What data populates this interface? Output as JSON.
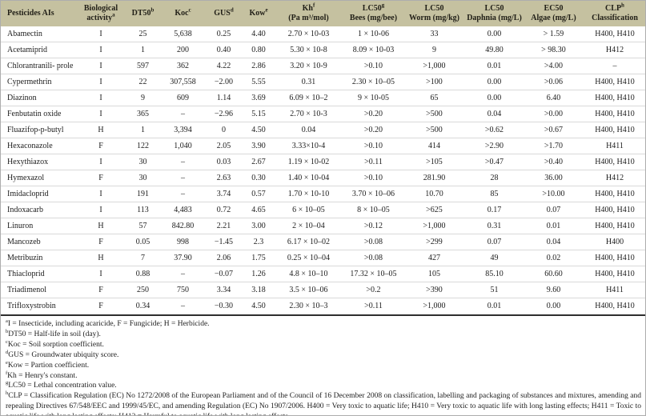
{
  "colors": {
    "header_bg": "#c5c1a0",
    "text": "#1c1c1c",
    "row_line": "#dadada",
    "heavy_rule": "#2e2e2e"
  },
  "table": {
    "columns": [
      {
        "id": "pesticide",
        "l1": "Pesticides AIs",
        "l1sup": "",
        "l2": "",
        "l2sup": "",
        "align": "left"
      },
      {
        "id": "bio-activity",
        "l1": "Biological",
        "l1sup": "",
        "l2": "activity",
        "l2sup": "a",
        "align": "center"
      },
      {
        "id": "dt50",
        "l1": "DT50",
        "l1sup": "b",
        "l2": "",
        "l2sup": "",
        "align": "center"
      },
      {
        "id": "koc",
        "l1": "Koc",
        "l1sup": "c",
        "l2": "",
        "l2sup": "",
        "align": "center"
      },
      {
        "id": "gus",
        "l1": "GUS",
        "l1sup": "d",
        "l2": "",
        "l2sup": "",
        "align": "center"
      },
      {
        "id": "kow",
        "l1": "Kow",
        "l1sup": "e",
        "l2": "",
        "l2sup": "",
        "align": "center"
      },
      {
        "id": "kh",
        "l1": "Kh",
        "l1sup": "f",
        "l2": "(Pa m³/mol)",
        "l2sup": "",
        "align": "center"
      },
      {
        "id": "lc50-bees",
        "l1": "LC50",
        "l1sup": "g",
        "l2": "Bees (mg/bee)",
        "l2sup": "",
        "align": "center"
      },
      {
        "id": "lc50-worm",
        "l1": "LC50",
        "l1sup": "",
        "l2": "Worm (mg/kg)",
        "l2sup": "",
        "align": "center"
      },
      {
        "id": "lc50-daphnia",
        "l1": "LC50",
        "l1sup": "",
        "l2": "Daphnia (mg/L)",
        "l2sup": "",
        "align": "center"
      },
      {
        "id": "ec50-algae",
        "l1": "EC50",
        "l1sup": "",
        "l2": "Algae (mg/L)",
        "l2sup": "",
        "align": "center"
      },
      {
        "id": "clp",
        "l1": "CLP",
        "l1sup": "h",
        "l2": "Classification",
        "l2sup": "",
        "align": "center"
      }
    ],
    "rows": [
      [
        "Abamectin",
        "I",
        "25",
        "5,638",
        "0.25",
        "4.40",
        "2.70 × 10-03",
        "1 × 10-06",
        "33",
        "0.00",
        "> 1.59",
        "H400, H410"
      ],
      [
        "Acetamiprid",
        "I",
        "1",
        "200",
        "0.40",
        "0.80",
        "5.30 × 10-8",
        "8.09 × 10-03",
        "9",
        "49.80",
        "> 98.30",
        "H412"
      ],
      [
        "Chlorantranili- prole",
        "I",
        "597",
        "362",
        "4.22",
        "2.86",
        "3.20 × 10-9",
        ">0.10",
        ">1,000",
        "0.01",
        ">4.00",
        "–"
      ],
      [
        "Cypermethrin",
        "I",
        "22",
        "307,558",
        "−2.00",
        "5.55",
        "0.31",
        "2.30 × 10–05",
        ">100",
        "0.00",
        ">0.06",
        "H400, H410"
      ],
      [
        "Diazinon",
        "I",
        "9",
        "609",
        "1.14",
        "3.69",
        "6.09 × 10–2",
        "9 × 10-05",
        "65",
        "0.00",
        "6.40",
        "H400, H410"
      ],
      [
        "Fenbutatin oxide",
        "I",
        "365",
        "–",
        "−2.96",
        "5.15",
        "2.70 × 10-3",
        ">0.20",
        ">500",
        "0.04",
        ">0.00",
        "H400, H410"
      ],
      [
        "Fluazifop-p-butyl",
        "H",
        "1",
        "3,394",
        "0",
        "4.50",
        "0.04",
        ">0.20",
        ">500",
        ">0.62",
        ">0.67",
        "H400, H410"
      ],
      [
        "Hexaconazole",
        "F",
        "122",
        "1,040",
        "2.05",
        "3.90",
        "3.33×10-4",
        ">0.10",
        "414",
        ">2.90",
        ">1.70",
        "H411"
      ],
      [
        "Hexythiazox",
        "I",
        "30",
        "–",
        "0.03",
        "2.67",
        "1.19 × 10-02",
        ">0.11",
        ">105",
        ">0.47",
        ">0.40",
        "H400, H410"
      ],
      [
        "Hymexazol",
        "F",
        "30",
        "–",
        "2.63",
        "0.30",
        "1.40 × 10-04",
        ">0.10",
        "281.90",
        "28",
        "36.00",
        "H412"
      ],
      [
        "Imidacloprid",
        "I",
        "191",
        "–",
        "3.74",
        "0.57",
        "1.70 × 10-10",
        "3.70 × 10–06",
        "10.70",
        "85",
        ">10.00",
        "H400, H410"
      ],
      [
        "Indoxacarb",
        "I",
        "113",
        "4,483",
        "0.72",
        "4.65",
        "6 × 10–05",
        "8 × 10–05",
        ">625",
        "0.17",
        "0.07",
        "H400, H410"
      ],
      [
        "Linuron",
        "H",
        "57",
        "842.80",
        "2.21",
        "3.00",
        "2 × 10–04",
        ">0.12",
        ">1,000",
        "0.31",
        "0.01",
        "H400, H410"
      ],
      [
        "Mancozeb",
        "F",
        "0.05",
        "998",
        "−1.45",
        "2.3",
        "6.17 × 10–02",
        ">0.08",
        ">299",
        "0.07",
        "0.04",
        "H400"
      ],
      [
        "Metribuzin",
        "H",
        "7",
        "37.90",
        "2.06",
        "1.75",
        "0.25 × 10–04",
        ">0.08",
        "427",
        "49",
        "0.02",
        "H400, H410"
      ],
      [
        "Thiacloprid",
        "I",
        "0.88",
        "–",
        "−0.07",
        "1.26",
        "4.8 × 10–10",
        "17.32 × 10–05",
        "105",
        "85.10",
        "60.60",
        "H400, H410"
      ],
      [
        "Triadimenol",
        "F",
        "250",
        "750",
        "3.34",
        "3.18",
        "3.5 × 10–06",
        ">0.2",
        ">390",
        "51",
        "9.60",
        "H411"
      ],
      [
        "Trifloxystrobin",
        "F",
        "0.34",
        "–",
        "−0.30",
        "4.50",
        "2.30 × 10–3",
        ">0.11",
        ">1,000",
        "0.01",
        "0.00",
        "H400, H410"
      ]
    ]
  },
  "footnotes": [
    {
      "sup": "a",
      "text": "I = Insecticide, including acaricide, F = Fungicide; H = Herbicide.",
      "justify": false
    },
    {
      "sup": "b",
      "text": "DT50 = Half-life in soil (day).",
      "justify": false
    },
    {
      "sup": "c",
      "text": "Koc = Soil sorption coefficient.",
      "justify": false
    },
    {
      "sup": "d",
      "text": "GUS = Groundwater ubiquity score.",
      "justify": false
    },
    {
      "sup": "e",
      "text": "Kow = Partion coefficient.",
      "justify": false
    },
    {
      "sup": "f",
      "text": "Kh = Henry's constant.",
      "justify": false
    },
    {
      "sup": "g",
      "text": "LC50 = Lethal concentration value.",
      "justify": false
    },
    {
      "sup": "h",
      "text": "CLP = Classification Regulation (EC) No 1272/2008 of the European Parliament and of the Council of 16 December 2008 on classification, labelling and packaging of substances and mixtures, amending and repealing Directives 67/548/EEC and 1999/45/EC, and amending Regulation (EC) No 1907/2006. H400 = Very toxic to aquatic life; H410 = Very toxic to aquatic life with long lasting effects; H411 = Toxic to aquatic life with long lasting effects; H412 = Harmful to aquatic life with long lasting effects.",
      "justify": true
    }
  ]
}
